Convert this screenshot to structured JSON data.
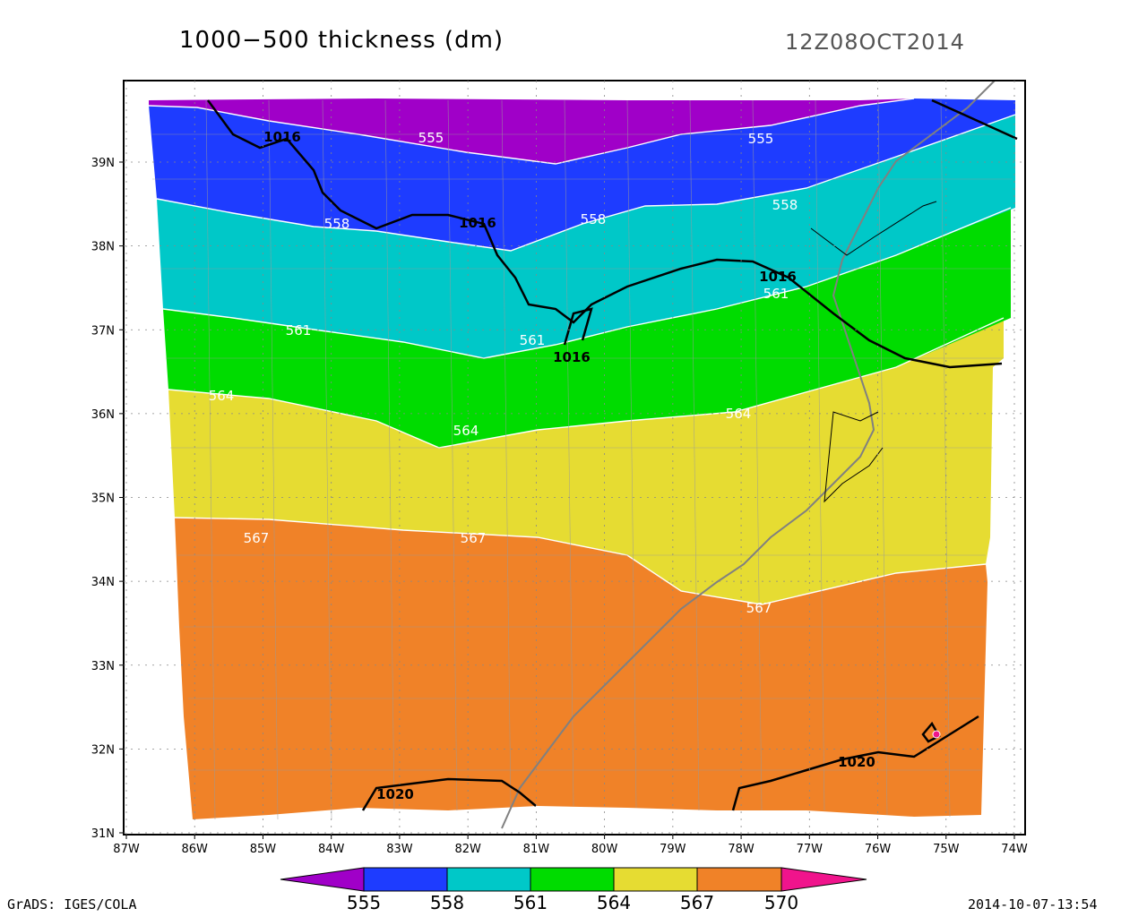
{
  "title": "1000−500 thickness (dm)",
  "datetime": "12Z08OCT2014",
  "footer": {
    "left": "GrADS: IGES/COLA",
    "right": "2014-10-07-13:54"
  },
  "axes": {
    "lat_labels": [
      "39N",
      "38N",
      "37N",
      "36N",
      "35N",
      "34N",
      "33N",
      "32N",
      "31N"
    ],
    "lon_labels": [
      "87W",
      "86W",
      "85W",
      "84W",
      "83W",
      "82W",
      "81W",
      "80W",
      "79W",
      "78W",
      "77W",
      "76W",
      "75W",
      "74W"
    ]
  },
  "colorbar": {
    "labels": [
      "555",
      "558",
      "561",
      "564",
      "567",
      "570"
    ],
    "colors": [
      "#a000c8",
      "#1e3cff",
      "#00c8c8",
      "#00dc00",
      "#e6dc32",
      "#f08228",
      "#f0148c"
    ]
  },
  "contour_labels": {
    "thickness": [
      "555",
      "555",
      "558",
      "558",
      "558",
      "561",
      "561",
      "561",
      "564",
      "564",
      "564",
      "567",
      "567",
      "567"
    ],
    "pressure": [
      "1016",
      "1016",
      "1016",
      "1016",
      "1020",
      "1020"
    ]
  },
  "chart_data": {
    "type": "filled-contour-map",
    "variable": "1000-500 hPa thickness",
    "units": "dm",
    "contour_interval": 3,
    "levels": [
      555,
      558,
      561,
      564,
      567,
      570
    ],
    "fill_colors": [
      "#a000c8",
      "#1e3cff",
      "#00c8c8",
      "#00dc00",
      "#e6dc32",
      "#f08228",
      "#f0148c"
    ],
    "lat_range": [
      31,
      39.8
    ],
    "lon_range": [
      -87,
      -73.8
    ],
    "isobars_mb": [
      1016,
      1020
    ]
  }
}
